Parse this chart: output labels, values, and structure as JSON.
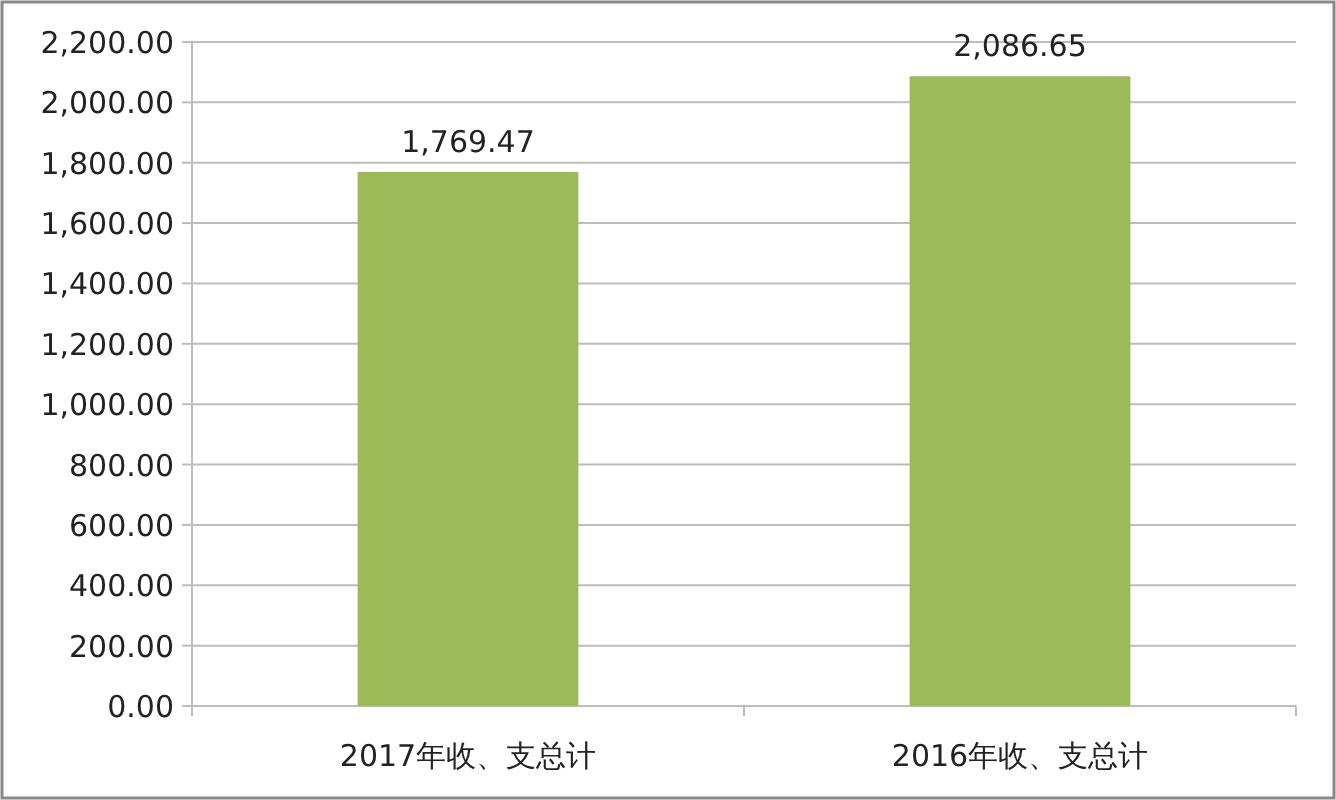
{
  "chart_data": {
    "type": "bar",
    "categories": [
      "2017年收、支总计",
      "2016年收、支总计"
    ],
    "values": [
      1769.47,
      2086.65
    ],
    "color": "#9bbb59",
    "value_labels": [
      "1,769.47",
      "2,086.65"
    ],
    "ylim": [
      0,
      2200
    ],
    "yticks": [
      {
        "value": 0,
        "label": "0.00"
      },
      {
        "value": 200,
        "label": "200.00"
      },
      {
        "value": 400,
        "label": "400.00"
      },
      {
        "value": 600,
        "label": "600.00"
      },
      {
        "value": 800,
        "label": "800.00"
      },
      {
        "value": 1000,
        "label": "1,000.00"
      },
      {
        "value": 1200,
        "label": "1,200.00"
      },
      {
        "value": 1400,
        "label": "1,400.00"
      },
      {
        "value": 1600,
        "label": "1,600.00"
      },
      {
        "value": 1800,
        "label": "1,800.00"
      },
      {
        "value": 2000,
        "label": "2,000.00"
      },
      {
        "value": 2200,
        "label": "2,200.00"
      }
    ],
    "grid": "y"
  }
}
